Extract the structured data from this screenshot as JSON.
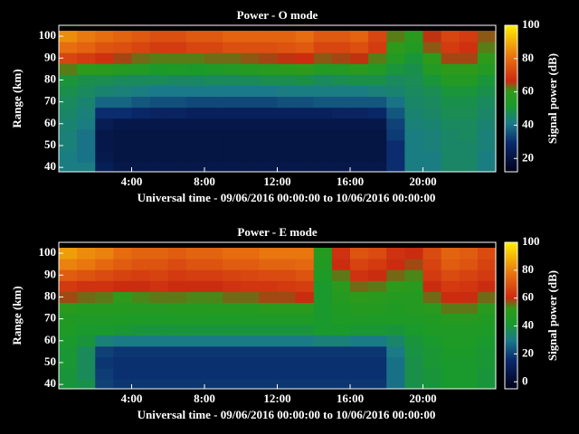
{
  "chart_data": [
    {
      "type": "heatmap",
      "title": "Power - O mode",
      "xlabel": "Universal time - 09/06/2016 00:00:00 to 10/06/2016 00:00:00",
      "ylabel": "Range (km)",
      "colorbar_label": "Signal power (dB)",
      "x": [
        0.5,
        1.5,
        2.5,
        3.5,
        4.5,
        5.5,
        6.5,
        7.5,
        8.5,
        9.5,
        10.5,
        11.5,
        12.5,
        13.5,
        14.5,
        15.5,
        16.5,
        17.5,
        18.5,
        19.5,
        20.5,
        21.5,
        22.5,
        23.5
      ],
      "y": [
        40,
        45,
        50,
        55,
        60,
        65,
        70,
        75,
        80,
        85,
        90,
        95,
        100
      ],
      "z": [
        [
          42,
          42,
          25,
          22,
          22,
          22,
          22,
          22,
          22,
          22,
          22,
          22,
          22,
          22,
          22,
          22,
          22,
          22,
          30,
          42,
          42,
          45,
          45,
          42
        ],
        [
          42,
          40,
          23,
          21,
          21,
          21,
          21,
          21,
          21,
          21,
          21,
          21,
          21,
          21,
          21,
          21,
          21,
          21,
          30,
          42,
          42,
          45,
          45,
          42
        ],
        [
          43,
          40,
          22,
          21,
          21,
          21,
          21,
          21,
          21,
          21,
          21,
          21,
          21,
          21,
          21,
          21,
          21,
          21,
          30,
          42,
          43,
          45,
          45,
          43
        ],
        [
          43,
          40,
          22,
          21,
          21,
          21,
          21,
          21,
          21,
          21,
          21,
          21,
          21,
          21,
          21,
          21,
          21,
          21,
          32,
          42,
          43,
          45,
          46,
          43
        ],
        [
          44,
          42,
          24,
          22,
          22,
          22,
          22,
          22,
          22,
          22,
          22,
          22,
          22,
          22,
          22,
          22,
          22,
          22,
          33,
          43,
          44,
          46,
          46,
          44
        ],
        [
          45,
          43,
          30,
          30,
          28,
          27,
          27,
          26,
          26,
          26,
          26,
          26,
          26,
          26,
          26,
          27,
          27,
          28,
          36,
          44,
          45,
          47,
          47,
          45
        ],
        [
          46,
          44,
          38,
          38,
          36,
          35,
          35,
          34,
          34,
          34,
          34,
          34,
          35,
          35,
          36,
          36,
          36,
          36,
          40,
          45,
          46,
          48,
          48,
          46
        ],
        [
          48,
          46,
          44,
          43,
          42,
          41,
          41,
          41,
          41,
          41,
          41,
          41,
          42,
          42,
          42,
          42,
          42,
          43,
          44,
          46,
          47,
          50,
          50,
          48
        ],
        [
          50,
          48,
          47,
          46,
          46,
          46,
          45,
          45,
          46,
          46,
          46,
          47,
          47,
          48,
          46,
          47,
          48,
          48,
          46,
          47,
          50,
          55,
          55,
          50
        ],
        [
          62,
          60,
          58,
          56,
          55,
          52,
          53,
          52,
          53,
          55,
          56,
          57,
          58,
          60,
          55,
          56,
          58,
          55,
          50,
          48,
          55,
          60,
          60,
          55
        ],
        [
          72,
          70,
          68,
          65,
          63,
          62,
          62,
          62,
          63,
          63,
          64,
          65,
          66,
          67,
          64,
          65,
          66,
          62,
          55,
          50,
          60,
          65,
          65,
          60
        ],
        [
          80,
          78,
          75,
          74,
          72,
          70,
          70,
          72,
          72,
          74,
          74,
          74,
          75,
          76,
          72,
          72,
          74,
          70,
          60,
          55,
          64,
          70,
          68,
          62
        ],
        [
          85,
          82,
          80,
          78,
          76,
          74,
          74,
          76,
          76,
          78,
          78,
          78,
          78,
          80,
          76,
          76,
          78,
          72,
          62,
          58,
          66,
          72,
          70,
          64
        ]
      ],
      "xlim": [
        0,
        24
      ],
      "xticks": [
        {
          "value": 4,
          "label": "4:00"
        },
        {
          "value": 8,
          "label": "8:00"
        },
        {
          "value": 12,
          "label": "12:00"
        },
        {
          "value": 16,
          "label": "16:00"
        },
        {
          "value": 20,
          "label": "20:00"
        }
      ],
      "ylim": [
        38,
        105
      ],
      "yticks": [
        40,
        50,
        60,
        70,
        80,
        90,
        100
      ],
      "zlim": [
        12,
        100
      ],
      "zticks": [
        20,
        40,
        60,
        80,
        100
      ]
    },
    {
      "type": "heatmap",
      "title": "Power - E mode",
      "xlabel": "Universal time - 09/06/2016 00:00:00 to 10/06/2016 00:00:00",
      "ylabel": "Range (km)",
      "colorbar_label": "Signal power (dB)",
      "x": [
        0.5,
        1.5,
        2.5,
        3.5,
        4.5,
        5.5,
        6.5,
        7.5,
        8.5,
        9.5,
        10.5,
        11.5,
        12.5,
        13.5,
        14.5,
        15.5,
        16.5,
        17.5,
        18.5,
        19.5,
        20.5,
        21.5,
        22.5,
        23.5
      ],
      "y": [
        40,
        45,
        50,
        55,
        60,
        65,
        70,
        75,
        80,
        85,
        90,
        95,
        100
      ],
      "z": [
        [
          40,
          38,
          20,
          18,
          18,
          18,
          18,
          18,
          18,
          18,
          18,
          18,
          18,
          18,
          18,
          18,
          18,
          18,
          28,
          38,
          40,
          42,
          42,
          40
        ],
        [
          40,
          36,
          19,
          17,
          17,
          17,
          17,
          17,
          17,
          17,
          17,
          17,
          17,
          17,
          17,
          17,
          17,
          17,
          28,
          38,
          40,
          42,
          42,
          40
        ],
        [
          41,
          36,
          18,
          17,
          17,
          17,
          17,
          17,
          17,
          17,
          17,
          17,
          17,
          17,
          17,
          17,
          17,
          17,
          28,
          38,
          41,
          42,
          42,
          41
        ],
        [
          41,
          36,
          20,
          18,
          18,
          18,
          18,
          18,
          18,
          18,
          18,
          18,
          18,
          18,
          18,
          18,
          18,
          18,
          30,
          39,
          41,
          43,
          43,
          41
        ],
        [
          42,
          40,
          32,
          30,
          30,
          30,
          30,
          30,
          30,
          30,
          30,
          30,
          30,
          30,
          32,
          32,
          30,
          30,
          34,
          40,
          42,
          44,
          44,
          42
        ],
        [
          44,
          42,
          42,
          41,
          40,
          40,
          40,
          40,
          40,
          40,
          40,
          40,
          40,
          40,
          42,
          42,
          41,
          41,
          40,
          42,
          44,
          45,
          45,
          44
        ],
        [
          46,
          45,
          45,
          44,
          44,
          44,
          44,
          45,
          44,
          44,
          45,
          45,
          45,
          45,
          42,
          44,
          45,
          44,
          44,
          45,
          46,
          48,
          48,
          46
        ],
        [
          50,
          48,
          48,
          48,
          47,
          47,
          48,
          48,
          48,
          48,
          48,
          50,
          50,
          50,
          42,
          46,
          48,
          48,
          46,
          47,
          50,
          55,
          55,
          50
        ],
        [
          58,
          56,
          55,
          52,
          54,
          55,
          55,
          54,
          54,
          56,
          56,
          58,
          58,
          60,
          42,
          48,
          52,
          50,
          48,
          48,
          56,
          60,
          60,
          56
        ],
        [
          64,
          62,
          62,
          60,
          60,
          62,
          60,
          60,
          60,
          62,
          63,
          63,
          64,
          65,
          42,
          50,
          56,
          55,
          52,
          50,
          60,
          64,
          63,
          60
        ],
        [
          72,
          70,
          68,
          66,
          65,
          66,
          64,
          65,
          65,
          66,
          67,
          68,
          68,
          70,
          44,
          55,
          62,
          60,
          56,
          54,
          64,
          68,
          66,
          64
        ],
        [
          80,
          78,
          75,
          72,
          70,
          70,
          68,
          70,
          70,
          72,
          72,
          74,
          74,
          75,
          46,
          60,
          66,
          64,
          60,
          58,
          66,
          72,
          70,
          66
        ],
        [
          85,
          82,
          80,
          76,
          74,
          74,
          72,
          74,
          74,
          76,
          76,
          78,
          78,
          78,
          48,
          62,
          70,
          68,
          62,
          60,
          68,
          74,
          72,
          68
        ]
      ],
      "xlim": [
        0,
        24
      ],
      "xticks": [
        {
          "value": 4,
          "label": "4:00"
        },
        {
          "value": 8,
          "label": "8:00"
        },
        {
          "value": 12,
          "label": "12:00"
        },
        {
          "value": 16,
          "label": "16:00"
        },
        {
          "value": 20,
          "label": "20:00"
        }
      ],
      "ylim": [
        38,
        105
      ],
      "yticks": [
        40,
        50,
        60,
        70,
        80,
        90,
        100
      ],
      "zlim": [
        -5,
        100
      ],
      "zticks": [
        0,
        20,
        40,
        60,
        80,
        100
      ]
    }
  ]
}
